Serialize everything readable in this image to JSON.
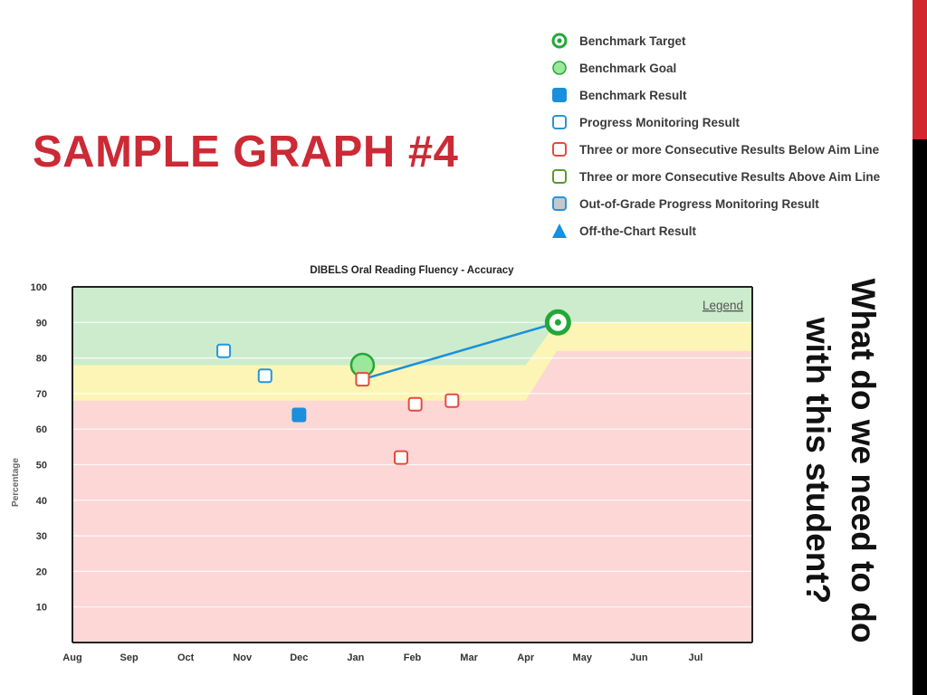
{
  "slide": {
    "title": "SAMPLE GRAPH #4",
    "question": "What do we need to do with this student?"
  },
  "legend_panel": [
    {
      "label": "Benchmark Target",
      "icon": "benchmark-target-icon"
    },
    {
      "label": "Benchmark Goal",
      "icon": "benchmark-goal-icon"
    },
    {
      "label": "Benchmark Result",
      "icon": "benchmark-result-icon"
    },
    {
      "label": "Progress Monitoring Result",
      "icon": "progress-monitoring-icon"
    },
    {
      "label": "Three or more Consecutive Results Below Aim Line",
      "icon": "below-aim-line-icon"
    },
    {
      "label": "Three or more Consecutive Results Above Aim Line",
      "icon": "above-aim-line-icon"
    },
    {
      "label": "Out-of-Grade Progress Monitoring Result",
      "icon": "out-of-grade-icon"
    },
    {
      "label": "Off-the-Chart Result",
      "icon": "off-chart-triangle-icon"
    }
  ],
  "colors": {
    "accent_red": "#cc2a35",
    "zone_green": "#cdeccd",
    "zone_yellow": "#fdf5b5",
    "zone_red": "#fdd6d6",
    "benchmark_target": "#22a838",
    "benchmark_goal": "#9be89b",
    "benchmark_result": "#1a8fdc",
    "progress_monitoring": "#2596d8",
    "below_aim": "#e64a3c",
    "aim_line": "#1a8fdc"
  },
  "chart_data": {
    "type": "scatter",
    "title": "DIBELS Oral Reading Fluency - Accuracy",
    "ylabel": "Percentage",
    "xlabel": "",
    "legend_link": "Legend",
    "x_ticks": [
      "Aug",
      "Sep",
      "Oct",
      "Nov",
      "Dec",
      "Jan",
      "Feb",
      "Mar",
      "Apr",
      "May",
      "Jun",
      "Jul"
    ],
    "y_ticks": [
      10,
      20,
      30,
      40,
      50,
      60,
      70,
      80,
      90,
      100
    ],
    "ylim": [
      0,
      100
    ],
    "xlim": [
      0,
      12
    ],
    "grid": true,
    "zones": {
      "red_top": [
        [
          0,
          68
        ],
        [
          8,
          68
        ],
        [
          8.55,
          82
        ],
        [
          12,
          82
        ]
      ],
      "yellow_top": [
        [
          0,
          78
        ],
        [
          8,
          78
        ],
        [
          8.55,
          90
        ],
        [
          12,
          90
        ]
      ]
    },
    "series": [
      {
        "kind": "progress_monitoring",
        "points": [
          [
            2.67,
            82
          ],
          [
            3.4,
            75
          ]
        ]
      },
      {
        "kind": "benchmark_result",
        "points": [
          [
            4.0,
            64
          ]
        ]
      },
      {
        "kind": "below_aim_line",
        "points": [
          [
            5.12,
            74
          ],
          [
            6.05,
            67
          ],
          [
            6.7,
            68
          ],
          [
            5.8,
            52
          ]
        ]
      },
      {
        "kind": "benchmark_goal",
        "points": [
          [
            5.12,
            78
          ]
        ]
      },
      {
        "kind": "benchmark_target",
        "points": [
          [
            8.57,
            90
          ]
        ]
      }
    ],
    "aim_line": [
      [
        5.12,
        74
      ],
      [
        8.57,
        90
      ]
    ]
  }
}
